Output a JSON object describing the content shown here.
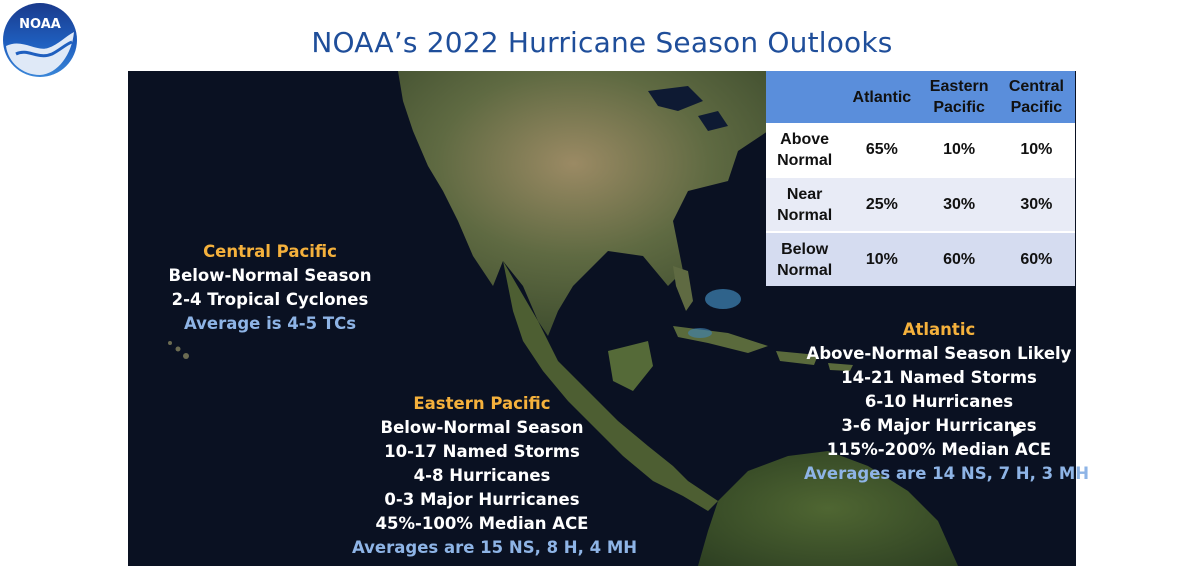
{
  "logo": {
    "text": "NOAA",
    "icon": "noaa-logo-icon"
  },
  "title": "NOAA’s 2022 Hurricane Season Outlooks",
  "table": {
    "columns": [
      "",
      "Atlantic",
      "Eastern Pacific",
      "Central Pacific"
    ],
    "rows": [
      {
        "label": "Above Normal",
        "values": [
          "65%",
          "10%",
          "10%"
        ]
      },
      {
        "label": "Near Normal",
        "values": [
          "25%",
          "30%",
          "30%"
        ]
      },
      {
        "label": "Below Normal",
        "values": [
          "10%",
          "60%",
          "60%"
        ]
      }
    ]
  },
  "central_pacific": {
    "title": "Central Pacific",
    "lines": [
      "Below-Normal Season",
      "2-4 Tropical Cyclones"
    ],
    "average": "Average is 4-5 TCs"
  },
  "eastern_pacific": {
    "title": "Eastern Pacific",
    "lines": [
      "Below-Normal Season",
      "10-17 Named Storms",
      "4-8 Hurricanes",
      "0-3 Major Hurricanes",
      "45%-100% Median ACE"
    ],
    "average": "Averages are 15 NS, 8 H, 4 MH"
  },
  "atlantic": {
    "title": "Atlantic",
    "lines": [
      "Above-Normal Season Likely",
      "14-21 Named Storms",
      "6-10 Hurricanes",
      "3-6 Major Hurricanes",
      "115%-200% Median ACE"
    ],
    "average": "Averages are 14 NS, 7 H, 3 MH"
  },
  "colors": {
    "title": "#1f4e9a",
    "region_title": "#f5b13c",
    "average": "#8eb4e6",
    "table_header": "#5a8edb",
    "ocean": "#0a1122"
  }
}
